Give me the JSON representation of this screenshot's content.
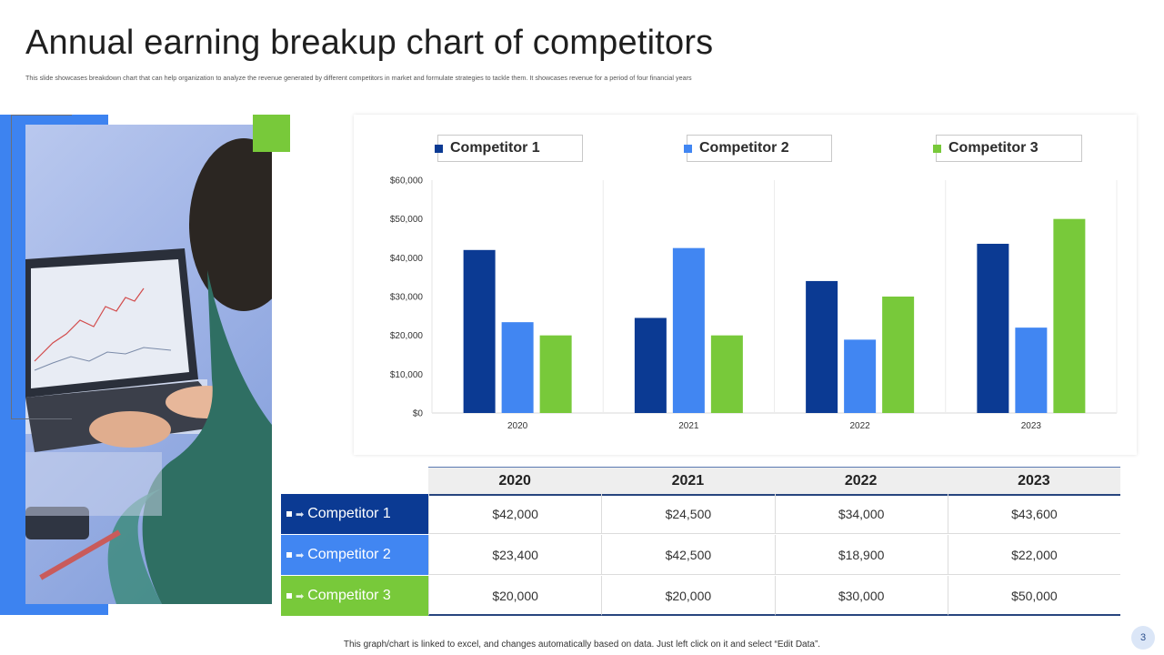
{
  "slide": {
    "title": "Annual earning breakup chart of competitors",
    "subtitle": "This slide showcases breakdown chart that can help organization to analyze the revenue generated by different competitors in market and formulate strategies to tackle them. It showcases revenue for a period of four financial years",
    "footnote": "This graph/chart is linked to excel, and changes automatically based on data. Just left click on it and select “Edit Data”.",
    "page_number": "3"
  },
  "colors": {
    "competitor_1": "#0b3a93",
    "competitor_2": "#4186f2",
    "competitor_3": "#78c93a",
    "accent_blue": "#3d83f0"
  },
  "chart_data": {
    "type": "bar",
    "categories": [
      "2020",
      "2021",
      "2022",
      "2023"
    ],
    "series": [
      {
        "name": "Competitor 1",
        "values": [
          42000,
          24500,
          34000,
          43600
        ]
      },
      {
        "name": "Competitor 2",
        "values": [
          23400,
          42500,
          18900,
          22000
        ]
      },
      {
        "name": "Competitor 3",
        "values": [
          20000,
          20000,
          30000,
          50000
        ]
      }
    ],
    "ylim": [
      0,
      60000
    ],
    "yticks": [
      "$0",
      "$10,000",
      "$20,000",
      "$30,000",
      "$40,000",
      "$50,000",
      "$60,000"
    ],
    "legend_position": "top",
    "grid": "vertical category separators"
  },
  "table": {
    "headers": [
      "2020",
      "2021",
      "2022",
      "2023"
    ],
    "rows": [
      {
        "label": "Competitor 1",
        "cells": [
          "$42,000",
          "$24,500",
          "$34,000",
          "$43,600"
        ]
      },
      {
        "label": "Competitor 2",
        "cells": [
          "$23,400",
          "$42,500",
          "$18,900",
          "$22,000"
        ]
      },
      {
        "label": "Competitor 3",
        "cells": [
          "$20,000",
          "$20,000",
          "$30,000",
          "$50,000"
        ]
      }
    ]
  }
}
